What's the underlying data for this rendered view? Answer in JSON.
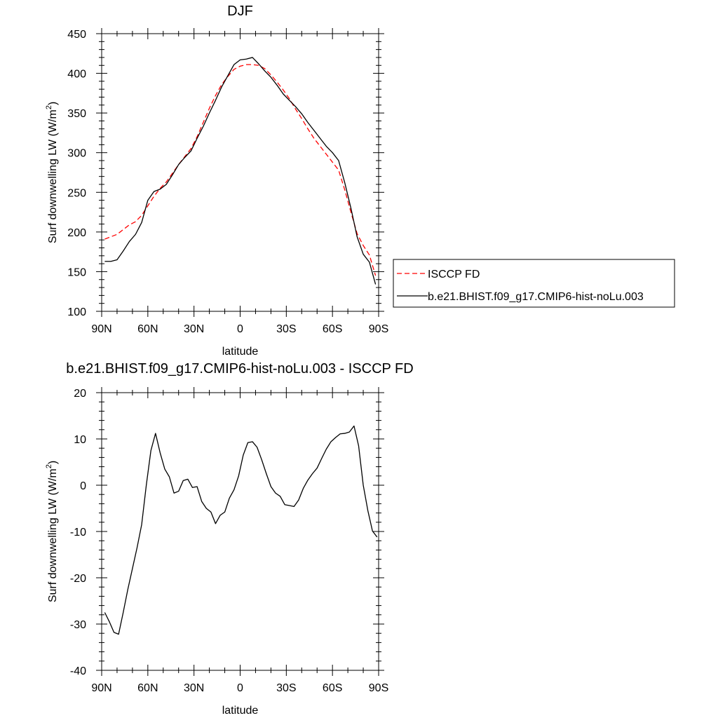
{
  "chart_data": [
    {
      "type": "line",
      "title": "DJF",
      "xlabel": "latitude",
      "ylabel_main": "Surf downwelling LW (W/m",
      "ylabel_sup": "2",
      "ylabel_close": ")",
      "xlim": [
        -90,
        90
      ],
      "ylim": [
        100,
        450
      ],
      "x_ticks": [
        -90,
        -60,
        -30,
        0,
        30,
        60,
        90
      ],
      "x_tick_labels": [
        "90N",
        "60N",
        "30N",
        "0",
        "30S",
        "60S",
        "90S"
      ],
      "y_ticks": [
        100,
        150,
        200,
        250,
        300,
        350,
        400,
        450
      ],
      "y_tick_labels": [
        "100",
        "150",
        "200",
        "250",
        "300",
        "350",
        "400",
        "450"
      ],
      "grid": false,
      "legend_position": "right",
      "series": [
        {
          "name": "ISCCP FD",
          "color": "#ff0000",
          "dash": "dashed",
          "x": [
            -88,
            -84,
            -80,
            -76,
            -72,
            -68,
            -64,
            -60,
            -56,
            -52,
            -48,
            -44,
            -40,
            -36,
            -32,
            -28,
            -24,
            -20,
            -16,
            -12,
            -8,
            -4,
            0,
            4,
            8,
            12,
            16,
            20,
            24,
            28,
            32,
            36,
            40,
            44,
            48,
            52,
            56,
            60,
            64,
            68,
            72,
            76,
            80,
            84,
            88
          ],
          "values": [
            191,
            194,
            197,
            203,
            209,
            213,
            221,
            233,
            245,
            255,
            263,
            274,
            285,
            295,
            305,
            320,
            338,
            356,
            372,
            386,
            396,
            405,
            409,
            411,
            411,
            410,
            406,
            398,
            389,
            379,
            368,
            355,
            343,
            330,
            318,
            308,
            298,
            288,
            278,
            253,
            225,
            198,
            183,
            171,
            145
          ]
        },
        {
          "name": "b.e21.BHIST.f09_g17.CMIP6-hist-noLu.003",
          "color": "#000000",
          "dash": "solid",
          "x": [
            -88,
            -84,
            -80,
            -76,
            -72,
            -68,
            -64,
            -60,
            -56,
            -52,
            -48,
            -44,
            -40,
            -36,
            -32,
            -28,
            -24,
            -20,
            -16,
            -12,
            -8,
            -4,
            0,
            4,
            8,
            12,
            16,
            20,
            24,
            28,
            32,
            36,
            40,
            44,
            48,
            52,
            56,
            60,
            64,
            68,
            72,
            76,
            80,
            84,
            88
          ],
          "values": [
            163,
            163,
            165,
            176,
            188,
            197,
            212,
            240,
            251,
            254,
            260,
            272,
            285,
            294,
            302,
            318,
            333,
            350,
            366,
            383,
            397,
            411,
            417,
            418,
            420,
            412,
            403,
            395,
            385,
            374,
            366,
            358,
            349,
            338,
            328,
            318,
            308,
            300,
            290,
            262,
            230,
            194,
            172,
            162,
            134
          ]
        }
      ]
    },
    {
      "type": "line",
      "title": "b.e21.BHIST.f09_g17.CMIP6-hist-noLu.003 - ISCCP FD",
      "xlabel": "latitude",
      "ylabel_main": "Surf downwelling LW (W/m",
      "ylabel_sup": "2",
      "ylabel_close": ")",
      "xlim": [
        -90,
        90
      ],
      "ylim": [
        -40,
        20
      ],
      "x_ticks": [
        -90,
        -60,
        -30,
        0,
        30,
        60,
        90
      ],
      "x_tick_labels": [
        "90N",
        "60N",
        "30N",
        "0",
        "30S",
        "60S",
        "90S"
      ],
      "y_ticks": [
        -40,
        -30,
        -20,
        -10,
        0,
        10,
        20
      ],
      "y_tick_labels": [
        "-40",
        "-30",
        "-20",
        "-10",
        "0",
        "10",
        "20"
      ],
      "grid": false,
      "series": [
        {
          "color": "#000000",
          "dash": "solid",
          "x": [
            -88,
            -85,
            -82,
            -79,
            -76,
            -73,
            -70,
            -67,
            -64,
            -61,
            -58,
            -55,
            -52,
            -49,
            -46,
            -43,
            -40,
            -37,
            -34,
            -31,
            -28,
            -25,
            -22,
            -19,
            -16,
            -13,
            -10,
            -7,
            -4,
            -1,
            2,
            5,
            8,
            11,
            14,
            17,
            20,
            23,
            26,
            29,
            32,
            35,
            38,
            41,
            44,
            47,
            50,
            53,
            56,
            59,
            62,
            65,
            68,
            71,
            74,
            77,
            80,
            83,
            86,
            89
          ],
          "values": [
            -27.5,
            -29.5,
            -31.8,
            -32.2,
            -27.5,
            -22.5,
            -18,
            -13.5,
            -8.5,
            0,
            7.5,
            11.2,
            7,
            3.5,
            1.8,
            -1.7,
            -1.3,
            1,
            1.3,
            -0.5,
            -0.3,
            -3.5,
            -5,
            -5.8,
            -8.3,
            -6.5,
            -5.8,
            -2.8,
            -1,
            2,
            6.5,
            9.2,
            9.4,
            8.2,
            5.5,
            2.5,
            -0.3,
            -1.7,
            -2.4,
            -4.2,
            -4.4,
            -4.6,
            -3.2,
            -0.7,
            1.1,
            2.5,
            3.7,
            5.8,
            7.8,
            9.4,
            10.3,
            11.1,
            11.2,
            11.5,
            12.8,
            8.5,
            0,
            -5.5,
            -9.9,
            -11.2
          ]
        }
      ]
    }
  ]
}
